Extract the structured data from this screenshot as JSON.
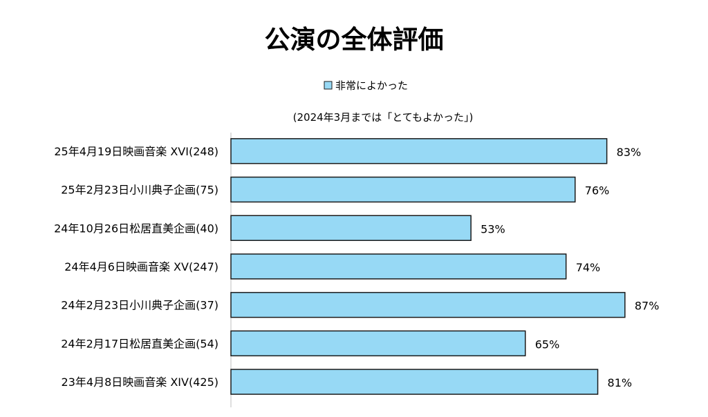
{
  "chart_data": {
    "type": "bar",
    "orientation": "horizontal",
    "title": "公演の全体評価",
    "subtitle": "(2024年3月までは「とてもよかった」)",
    "legend": {
      "position": "top",
      "entries": [
        "非常によかった"
      ]
    },
    "categories": [
      "25年4月19日映画音楽 XVI(248)",
      "25年2月23日小川典子企画(75)",
      "24年10月26日松居直美企画(40)",
      "24年4月6日映画音楽 XV(247)",
      "24年2月23日小川典子企画(37)",
      "24年2月17日松居直美企画(54)",
      "23年4月8日映画音楽 XIV(425)"
    ],
    "series": [
      {
        "name": "非常によかった",
        "values": [
          83,
          76,
          53,
          74,
          87,
          65,
          81
        ],
        "labels": [
          "83%",
          "76%",
          "53%",
          "74%",
          "87%",
          "65%",
          "81%"
        ]
      }
    ],
    "xlim": [
      0,
      100
    ],
    "unit": "%",
    "grid": false,
    "colors": {
      "bar_fill": "#97d9f5",
      "bar_stroke": "#1a1a1a",
      "axis": "#bfbfbf"
    }
  }
}
